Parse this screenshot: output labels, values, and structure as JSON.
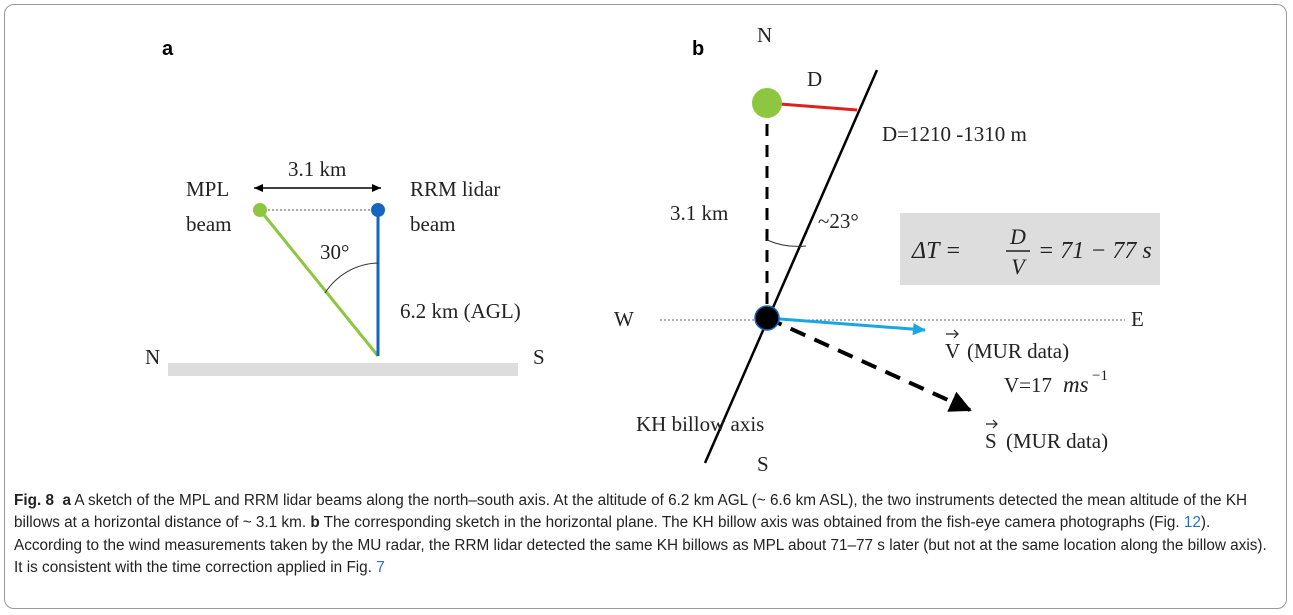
{
  "panel_a": {
    "label": "a",
    "ground_left": "N",
    "ground_right": "S",
    "distance": "3.1 km",
    "mpl_label": [
      "MPL",
      "beam"
    ],
    "rrm_label": [
      "RRM lidar",
      "beam"
    ],
    "angle": "30°",
    "altitude": "6.2 km (AGL)"
  },
  "panel_b": {
    "label": "b",
    "north": "N",
    "south": "S",
    "west": "W",
    "east": "E",
    "d_label": "D",
    "d_range": "D=1210 -1310 m",
    "distance": "3.1 km",
    "angle": "~23°",
    "formula": {
      "lhs": "ΔT =",
      "numerator": "D",
      "denominator": "V",
      "rhs": "= 71 − 77 s"
    },
    "v_vector": {
      "symbol": "V",
      "text": "(MUR data)"
    },
    "speed": {
      "prefix": "V=17",
      "unit": "ms",
      "exponent": "−1"
    },
    "s_vector": {
      "symbol": "S",
      "text": "(MUR data)"
    },
    "axis_label": "KH billow axis"
  },
  "caption": {
    "figure": "Fig. 8",
    "part_a": "a",
    "text_a": "A sketch of the MPL and RRM lidar beams along the north–south axis. At the altitude of 6.2 km AGL (~ 6.6 km ASL), the two instruments detected the mean altitude of the KH billows at a horizontal distance of ~ 3.1 km.",
    "part_b": "b",
    "text_b_1": "The corresponding sketch in the horizontal plane. The KH billow axis was obtained from the fish-eye camera photographs (Fig. ",
    "ref_1": "12",
    "text_b_2": "). According to the wind measurements taken by the MU radar, the RRM lidar detected the same KH billows as MPL about 71–77 s later (but not at the same location along the billow axis). It is consistent with the time correction applied in Fig. ",
    "ref_2": "7"
  }
}
